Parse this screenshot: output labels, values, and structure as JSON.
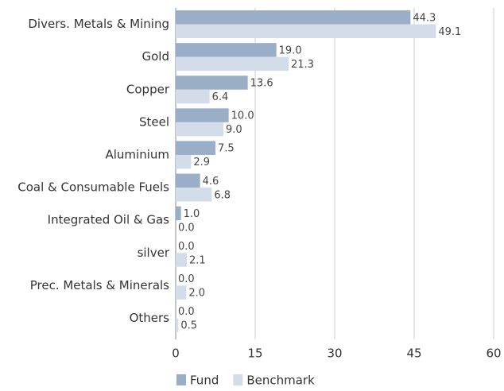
{
  "chart_data": {
    "type": "hbar",
    "categories": [
      "Divers. Metals & Mining",
      "Gold",
      "Copper",
      "Steel",
      "Aluminium",
      "Coal & Consumable Fuels",
      "Integrated Oil & Gas",
      "silver",
      "Prec. Metals & Minerals",
      "Others"
    ],
    "series": [
      {
        "name": "Fund",
        "color": "#9aaec8",
        "values": [
          44.3,
          19.0,
          13.6,
          10.0,
          7.5,
          4.6,
          1.0,
          0.0,
          0.0,
          0.0
        ],
        "value_labels": [
          "44.3",
          "19.0",
          "13.6",
          "10.0",
          "7.5",
          "4.6",
          "1.0",
          "0.0",
          "0.0",
          "0.0"
        ]
      },
      {
        "name": "Benchmark",
        "color": "#d3dde9",
        "values": [
          49.1,
          21.3,
          6.4,
          9.0,
          2.9,
          6.8,
          0.0,
          2.1,
          2.0,
          0.5
        ],
        "value_labels": [
          "49.1",
          "21.3",
          "6.4",
          "9.0",
          "2.9",
          "6.8",
          "0.0",
          "2.1",
          "2.0",
          "0.5"
        ]
      }
    ],
    "xlim": [
      0,
      60
    ],
    "xticks": [
      0,
      15,
      30,
      45,
      60
    ],
    "grid": true,
    "legend": "bottom"
  }
}
